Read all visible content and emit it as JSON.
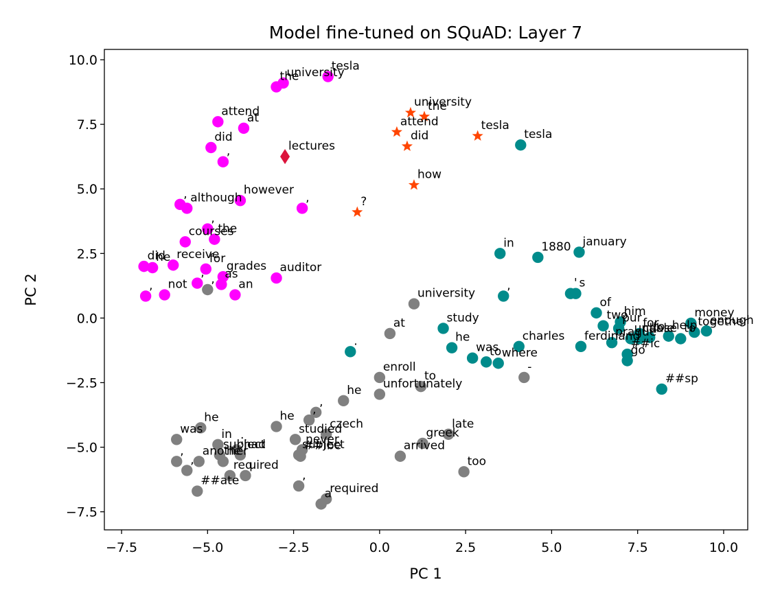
{
  "chart_data": {
    "type": "scatter",
    "title": "Model fine-tuned on SQuAD: Layer 7",
    "xlabel": "PC 1",
    "ylabel": "PC 2",
    "xlim": [
      -8.0,
      10.7
    ],
    "ylim": [
      -8.2,
      10.4
    ],
    "x_ticks": [
      -7.5,
      -5.0,
      -2.5,
      0.0,
      2.5,
      5.0,
      7.5,
      10.0
    ],
    "x_tick_labels": [
      "−7.5",
      "−5.0",
      "−2.5",
      "0.0",
      "2.5",
      "5.0",
      "7.5",
      "10.0"
    ],
    "y_ticks": [
      -7.5,
      -5.0,
      -2.5,
      0.0,
      2.5,
      5.0,
      7.5,
      10.0
    ],
    "y_tick_labels": [
      "−7.5",
      "−5.0",
      "−2.5",
      "0.0",
      "2.5",
      "5.0",
      "7.5",
      "10.0"
    ],
    "grid": false,
    "series": [
      {
        "color": "#ff00ff",
        "marker": "circle",
        "points": [
          {
            "x": -1.5,
            "y": 9.35,
            "label": "tesla"
          },
          {
            "x": -2.8,
            "y": 9.1,
            "label": "university"
          },
          {
            "x": -3.0,
            "y": 8.95,
            "label": "the"
          },
          {
            "x": -4.7,
            "y": 7.6,
            "label": "attend"
          },
          {
            "x": -3.95,
            "y": 7.35,
            "label": "at"
          },
          {
            "x": -4.9,
            "y": 6.6,
            "label": "did"
          },
          {
            "x": -4.55,
            "y": 6.05,
            "label": ","
          },
          {
            "x": -5.8,
            "y": 4.4,
            "label": ","
          },
          {
            "x": -5.6,
            "y": 4.25,
            "label": "although"
          },
          {
            "x": -4.05,
            "y": 4.55,
            "label": "however"
          },
          {
            "x": -2.25,
            "y": 4.25,
            "label": ","
          },
          {
            "x": -5.0,
            "y": 3.45,
            "label": ","
          },
          {
            "x": -4.8,
            "y": 3.05,
            "label": "the"
          },
          {
            "x": -5.65,
            "y": 2.95,
            "label": "courses"
          },
          {
            "x": -6.85,
            "y": 2.0,
            "label": "did"
          },
          {
            "x": -6.6,
            "y": 1.95,
            "label": "he"
          },
          {
            "x": -6.0,
            "y": 2.05,
            "label": "receive"
          },
          {
            "x": -5.05,
            "y": 1.9,
            "label": "for"
          },
          {
            "x": -4.55,
            "y": 1.6,
            "label": "grades"
          },
          {
            "x": -3.0,
            "y": 1.55,
            "label": "auditor"
          },
          {
            "x": -5.3,
            "y": 1.35,
            "label": ","
          },
          {
            "x": -4.6,
            "y": 1.3,
            "label": "as"
          },
          {
            "x": -6.8,
            "y": 0.85,
            "label": ","
          },
          {
            "x": -6.25,
            "y": 0.9,
            "label": "not"
          },
          {
            "x": -4.2,
            "y": 0.9,
            "label": "an"
          }
        ]
      },
      {
        "color": "#dc143c",
        "marker": "diamond",
        "points": [
          {
            "x": -2.75,
            "y": 6.25,
            "label": "lectures"
          }
        ]
      },
      {
        "color": "#ff4500",
        "marker": "star",
        "points": [
          {
            "x": 0.9,
            "y": 7.95,
            "label": "university"
          },
          {
            "x": 1.3,
            "y": 7.8,
            "label": "the"
          },
          {
            "x": 0.5,
            "y": 7.2,
            "label": "attend"
          },
          {
            "x": 0.8,
            "y": 6.65,
            "label": "did"
          },
          {
            "x": 2.85,
            "y": 7.05,
            "label": "tesla"
          },
          {
            "x": 1.0,
            "y": 5.15,
            "label": "how"
          },
          {
            "x": -0.65,
            "y": 4.1,
            "label": "?"
          }
        ]
      },
      {
        "color": "#008b8b",
        "marker": "circle",
        "points": [
          {
            "x": 4.1,
            "y": 6.7,
            "label": "tesla"
          },
          {
            "x": 3.5,
            "y": 2.5,
            "label": "in"
          },
          {
            "x": 4.6,
            "y": 2.35,
            "label": "1880"
          },
          {
            "x": 5.8,
            "y": 2.55,
            "label": "january"
          },
          {
            "x": 5.55,
            "y": 0.95,
            "label": "'"
          },
          {
            "x": 5.7,
            "y": 0.95,
            "label": "s"
          },
          {
            "x": 3.6,
            "y": 0.85,
            "label": ","
          },
          {
            "x": 6.3,
            "y": 0.2,
            "label": "of"
          },
          {
            "x": 7.0,
            "y": -0.15,
            "label": "him"
          },
          {
            "x": 6.5,
            "y": -0.3,
            "label": "two"
          },
          {
            "x": 6.95,
            "y": -0.4,
            "label": "pur"
          },
          {
            "x": 7.55,
            "y": -0.6,
            "label": "for"
          },
          {
            "x": 7.85,
            "y": -0.75,
            "label": "to"
          },
          {
            "x": 7.3,
            "y": -0.8,
            "label": "unable"
          },
          {
            "x": 7.55,
            "y": -0.8,
            "label": "chase"
          },
          {
            "x": 8.4,
            "y": -0.7,
            "label": "help"
          },
          {
            "x": 8.75,
            "y": -0.8,
            "label": "to"
          },
          {
            "x": 9.05,
            "y": -0.2,
            "label": "money"
          },
          {
            "x": 9.5,
            "y": -0.5,
            "label": "enough"
          },
          {
            "x": 9.15,
            "y": -0.55,
            "label": "together"
          },
          {
            "x": 6.75,
            "y": -0.95,
            "label": "prague"
          },
          {
            "x": 5.85,
            "y": -1.1,
            "label": "ferdinand"
          },
          {
            "x": 4.05,
            "y": -1.1,
            "label": "charles"
          },
          {
            "x": 7.2,
            "y": -1.4,
            "label": "##ic"
          },
          {
            "x": 7.2,
            "y": -1.65,
            "label": "go"
          },
          {
            "x": 2.1,
            "y": -1.15,
            "label": "he"
          },
          {
            "x": 1.85,
            "y": -0.4,
            "label": "study"
          },
          {
            "x": 2.7,
            "y": -1.55,
            "label": "was"
          },
          {
            "x": 3.1,
            "y": -1.7,
            "label": "to"
          },
          {
            "x": 3.45,
            "y": -1.75,
            "label": "where"
          },
          {
            "x": -0.85,
            "y": -1.3,
            "label": "."
          },
          {
            "x": 8.2,
            "y": -2.75,
            "label": "##sp"
          }
        ]
      },
      {
        "color": "#808080",
        "marker": "circle",
        "points": [
          {
            "x": 1.0,
            "y": 0.55,
            "label": "university"
          },
          {
            "x": -5.0,
            "y": 1.1,
            "label": ","
          },
          {
            "x": 0.3,
            "y": -0.6,
            "label": "at"
          },
          {
            "x": 4.2,
            "y": -2.3,
            "label": "-"
          },
          {
            "x": 0.0,
            "y": -2.3,
            "label": "enroll"
          },
          {
            "x": 1.2,
            "y": -2.65,
            "label": "to"
          },
          {
            "x": 0.0,
            "y": -2.95,
            "label": "unfortunately"
          },
          {
            "x": -1.05,
            "y": -3.2,
            "label": "he"
          },
          {
            "x": -1.85,
            "y": -3.65,
            "label": ","
          },
          {
            "x": -2.05,
            "y": -3.95,
            "label": ","
          },
          {
            "x": -5.2,
            "y": -4.25,
            "label": "he"
          },
          {
            "x": -3.0,
            "y": -4.2,
            "label": "he"
          },
          {
            "x": -1.55,
            "y": -4.5,
            "label": "czech"
          },
          {
            "x": 2.0,
            "y": -4.5,
            "label": "late"
          },
          {
            "x": 1.25,
            "y": -4.85,
            "label": "greek"
          },
          {
            "x": -5.9,
            "y": -4.7,
            "label": "was"
          },
          {
            "x": -4.7,
            "y": -4.9,
            "label": "in"
          },
          {
            "x": -2.45,
            "y": -4.7,
            "label": "studied"
          },
          {
            "x": -4.15,
            "y": -5.1,
            "label": ";"
          },
          {
            "x": -2.25,
            "y": -5.1,
            "label": "never"
          },
          {
            "x": -4.65,
            "y": -5.3,
            "label": "subject"
          },
          {
            "x": -4.05,
            "y": -5.3,
            "label": "had"
          },
          {
            "x": -2.35,
            "y": -5.3,
            "label": "subject"
          },
          {
            "x": -2.3,
            "y": -5.35,
            "label": "##ibe"
          },
          {
            "x": 0.6,
            "y": -5.35,
            "label": "arrived"
          },
          {
            "x": -5.9,
            "y": -5.55,
            "label": ","
          },
          {
            "x": -5.25,
            "y": -5.55,
            "label": "another"
          },
          {
            "x": -4.55,
            "y": -5.55,
            "label": "he"
          },
          {
            "x": -5.6,
            "y": -5.9,
            "label": ","
          },
          {
            "x": -4.35,
            "y": -6.1,
            "label": "req"
          },
          {
            "x": -3.9,
            "y": -6.1,
            "label": "uired"
          },
          {
            "x": 2.45,
            "y": -5.95,
            "label": "too"
          },
          {
            "x": -2.35,
            "y": -6.5,
            "label": ","
          },
          {
            "x": -5.3,
            "y": -6.7,
            "label": "##ate"
          },
          {
            "x": -1.55,
            "y": -7.0,
            "label": "required"
          },
          {
            "x": -1.7,
            "y": -7.2,
            "label": "a"
          }
        ]
      }
    ]
  }
}
